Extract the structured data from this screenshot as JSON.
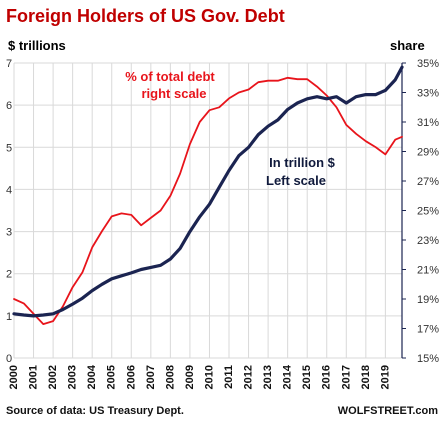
{
  "chart_data": {
    "type": "line",
    "title": "Foreign Holders of US Gov. Debt",
    "left_axis": {
      "unit": "$ trillions",
      "ylim": [
        0,
        7
      ],
      "ticks": [
        {
          "value": 0,
          "label": "0"
        },
        {
          "value": 1,
          "label": "1"
        },
        {
          "value": 2,
          "label": "2"
        },
        {
          "value": 3,
          "label": "3"
        },
        {
          "value": 4,
          "label": "4"
        },
        {
          "value": 5,
          "label": "5"
        },
        {
          "value": 6,
          "label": "6"
        },
        {
          "value": 7,
          "label": "7"
        }
      ]
    },
    "right_axis": {
      "unit": "share",
      "ylim": [
        15,
        35
      ],
      "ticks": [
        {
          "value": 15,
          "label": "15%"
        },
        {
          "value": 17,
          "label": "17%"
        },
        {
          "value": 19,
          "label": "19%"
        },
        {
          "value": 21,
          "label": "21%"
        },
        {
          "value": 23,
          "label": "23%"
        },
        {
          "value": 25,
          "label": "25%"
        },
        {
          "value": 27,
          "label": "27%"
        },
        {
          "value": 29,
          "label": "29%"
        },
        {
          "value": 31,
          "label": "31%"
        },
        {
          "value": 33,
          "label": "33%"
        },
        {
          "value": 35,
          "label": "35%"
        }
      ]
    },
    "xlim": [
      2000,
      2019.85
    ],
    "x_ticks": [
      "2000",
      "2001",
      "2002",
      "2003",
      "2004",
      "2005",
      "2006",
      "2007",
      "2008",
      "2009",
      "2010",
      "2011",
      "2012",
      "2013",
      "2014",
      "2015",
      "2016",
      "2017",
      "2018",
      "2019"
    ],
    "grid": true,
    "series": [
      {
        "name": "In trillion $ Left scale",
        "axis": "left",
        "color": "#1b2451",
        "x": [
          2000,
          2000.5,
          2001,
          2001.5,
          2002,
          2002.5,
          2003,
          2003.5,
          2004,
          2004.5,
          2005,
          2005.5,
          2006,
          2006.5,
          2007,
          2007.5,
          2008,
          2008.5,
          2009,
          2009.5,
          2010,
          2010.5,
          2011,
          2011.5,
          2012,
          2012.5,
          2013,
          2013.5,
          2014,
          2014.5,
          2015,
          2015.5,
          2016,
          2016.5,
          2017,
          2017.5,
          2018,
          2018.5,
          2019,
          2019.5,
          2019.85
        ],
        "values": [
          1.05,
          1.02,
          1.0,
          1.02,
          1.05,
          1.15,
          1.28,
          1.42,
          1.6,
          1.75,
          1.88,
          1.95,
          2.02,
          2.1,
          2.15,
          2.2,
          2.35,
          2.6,
          3.0,
          3.35,
          3.65,
          4.05,
          4.45,
          4.8,
          5.0,
          5.3,
          5.5,
          5.65,
          5.9,
          6.05,
          6.15,
          6.2,
          6.15,
          6.2,
          6.05,
          6.2,
          6.25,
          6.25,
          6.35,
          6.6,
          6.9
        ]
      },
      {
        "name": "% of total debt right scale",
        "axis": "right",
        "color": "#e8141b",
        "x": [
          2000,
          2000.5,
          2001,
          2001.5,
          2002,
          2002.5,
          2003,
          2003.5,
          2004,
          2004.5,
          2005,
          2005.5,
          2006,
          2006.5,
          2007,
          2007.5,
          2008,
          2008.5,
          2009,
          2009.5,
          2010,
          2010.5,
          2011,
          2011.5,
          2012,
          2012.5,
          2013,
          2013.5,
          2014,
          2014.5,
          2015,
          2015.5,
          2016,
          2016.5,
          2017,
          2017.5,
          2018,
          2018.5,
          2019,
          2019.5,
          2019.85
        ],
        "values": [
          19.0,
          18.7,
          18.0,
          17.3,
          17.5,
          18.5,
          19.8,
          20.8,
          22.5,
          23.6,
          24.6,
          24.8,
          24.7,
          24.0,
          24.5,
          25.0,
          26.0,
          27.5,
          29.5,
          31.0,
          31.8,
          32.0,
          32.6,
          33.0,
          33.2,
          33.7,
          33.8,
          33.8,
          34.0,
          33.9,
          33.9,
          33.4,
          32.8,
          32.0,
          30.8,
          30.2,
          29.7,
          29.3,
          28.8,
          29.8,
          30.0
        ]
      }
    ],
    "annotations": [
      {
        "text": "% of total debt",
        "series": "right"
      },
      {
        "text": "right scale",
        "series": "right"
      },
      {
        "text": "In trillion $",
        "series": "left"
      },
      {
        "text": "Left scale",
        "series": "left"
      }
    ],
    "source": "Source of data: US Treasury Dept.",
    "credit": "WOLFSTREET.com"
  }
}
